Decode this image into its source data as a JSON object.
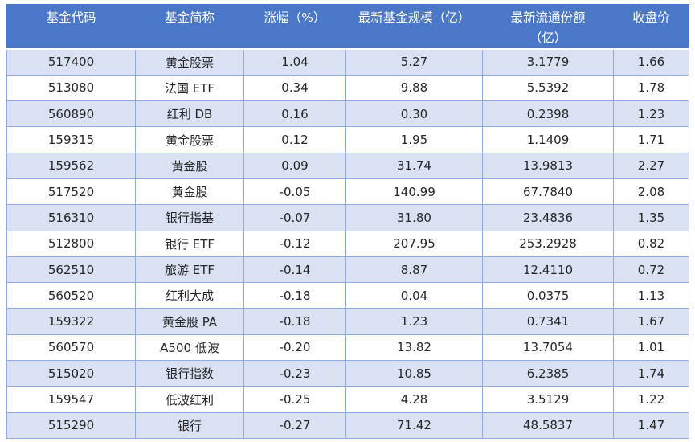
{
  "colors": {
    "header_bg": "#4a77c8",
    "band_bg": "#d9e1f2",
    "border_color": "#8faadc",
    "header_text": "#ffffff",
    "body_text": "#262626",
    "page_bg": "#ffffff"
  },
  "chart_data": {
    "type": "table",
    "title": "",
    "columns": [
      "基金代码",
      "基金简称",
      "涨幅（%）",
      "最新基金规模（亿）",
      "最新流通份额（亿）",
      "收盘价"
    ],
    "column_labels_display": [
      "基金代码",
      "基金简称",
      "涨幅（%）",
      "最新基金规模（亿）",
      "最新流通份额\n（亿）",
      "收盘价"
    ],
    "rows": [
      [
        "517400",
        "黄金股票",
        "1.04",
        "5.27",
        "3.1779",
        "1.66"
      ],
      [
        "513080",
        "法国 ETF",
        "0.34",
        "9.88",
        "5.5392",
        "1.78"
      ],
      [
        "560890",
        "红利 DB",
        "0.16",
        "0.30",
        "0.2398",
        "1.23"
      ],
      [
        "159315",
        "黄金股票",
        "0.12",
        "1.95",
        "1.1409",
        "1.71"
      ],
      [
        "159562",
        "黄金股",
        "0.09",
        "31.74",
        "13.9813",
        "2.27"
      ],
      [
        "517520",
        "黄金股",
        "-0.05",
        "140.99",
        "67.7840",
        "2.08"
      ],
      [
        "516310",
        "银行指基",
        "-0.07",
        "31.80",
        "23.4836",
        "1.35"
      ],
      [
        "512800",
        "银行 ETF",
        "-0.12",
        "207.95",
        "253.2928",
        "0.82"
      ],
      [
        "562510",
        "旅游 ETF",
        "-0.14",
        "8.87",
        "12.4110",
        "0.72"
      ],
      [
        "560520",
        "红利大成",
        "-0.18",
        "0.04",
        "0.0375",
        "1.13"
      ],
      [
        "159322",
        "黄金股 PA",
        "-0.18",
        "1.23",
        "0.7341",
        "1.67"
      ],
      [
        "560570",
        "A500 低波",
        "-0.20",
        "13.82",
        "13.7054",
        "1.01"
      ],
      [
        "515020",
        "银行指数",
        "-0.23",
        "10.85",
        "6.2385",
        "1.74"
      ],
      [
        "159547",
        "低波红利",
        "-0.25",
        "4.28",
        "3.5129",
        "1.22"
      ],
      [
        "515290",
        "银行",
        "-0.27",
        "71.42",
        "48.5837",
        "1.47"
      ]
    ]
  }
}
